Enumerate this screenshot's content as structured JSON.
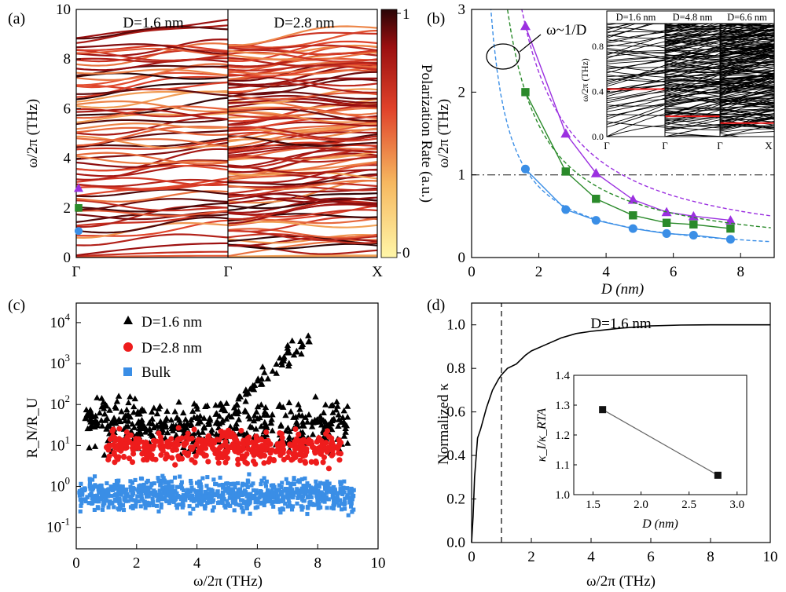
{
  "chart_data": [
    {
      "panel": "(a)",
      "type": "line",
      "ylabel": "ω/2π (THz)",
      "ylim": [
        0,
        10
      ],
      "y_ticks": [
        "0",
        "2",
        "4",
        "6",
        "8",
        "10"
      ],
      "x_ticks": [
        "Γ",
        "Γ",
        "X"
      ],
      "sub_labels": [
        "D=1.6 nm",
        "D=2.8 nm"
      ],
      "colorbar": {
        "label": "Polarization Rate (a.u.)",
        "ticks": [
          "0",
          "1"
        ],
        "range": [
          0,
          1
        ]
      },
      "markers": [
        {
          "shape": "triangle",
          "color": "#9b30e0",
          "y": 2.8
        },
        {
          "shape": "square",
          "color": "#2a8a2a",
          "y": 2.0
        },
        {
          "shape": "circle",
          "color": "#3a8ee6",
          "y": 1.07
        }
      ]
    },
    {
      "panel": "(b)",
      "type": "line",
      "xlabel": "D (nm)",
      "ylabel": "ω/2π (THz)",
      "xlim": [
        0,
        9
      ],
      "ylim": [
        0,
        3
      ],
      "x_ticks": [
        "0",
        "2",
        "4",
        "6",
        "8"
      ],
      "y_ticks": [
        "0",
        "1",
        "2",
        "3"
      ],
      "annotation": "ω~1/D",
      "reference_line_y": 1,
      "series": [
        {
          "shape": "triangle",
          "color": "#9b30e0",
          "x": [
            1.6,
            2.8,
            3.7,
            4.8,
            5.8,
            6.6,
            7.7
          ],
          "y": [
            2.8,
            1.5,
            1.02,
            0.7,
            0.55,
            0.5,
            0.45
          ]
        },
        {
          "shape": "square",
          "color": "#2a8a2a",
          "x": [
            1.6,
            2.8,
            3.7,
            4.8,
            5.8,
            6.6,
            7.7
          ],
          "y": [
            2.0,
            1.04,
            0.71,
            0.51,
            0.42,
            0.4,
            0.35
          ]
        },
        {
          "shape": "circle",
          "color": "#3a8ee6",
          "x": [
            1.6,
            2.8,
            3.7,
            4.8,
            5.8,
            6.6,
            7.7
          ],
          "y": [
            1.07,
            0.58,
            0.45,
            0.35,
            0.29,
            0.27,
            0.22
          ]
        }
      ],
      "inset": {
        "ylabel": "ω/2π (THz)",
        "ylim": [
          0,
          1
        ],
        "y_ticks": [
          "0.0",
          "0.4",
          "0.8"
        ],
        "x_ticks": [
          "Γ",
          "Γ",
          "Γ",
          "X"
        ],
        "titles": [
          "D=1.6 nm",
          "D=4.8 nm",
          "D=6.6 nm"
        ],
        "red_levels": [
          0.42,
          0.18,
          0.12
        ]
      }
    },
    {
      "panel": "(c)",
      "type": "scatter",
      "xlabel": "ω/2π (THz)",
      "ylabel": "R_N/R_U",
      "xlim": [
        0,
        10
      ],
      "y_scale": "log",
      "ylim": [
        0.03,
        30000
      ],
      "x_ticks": [
        "0",
        "2",
        "4",
        "6",
        "8",
        "10"
      ],
      "y_ticks": [
        {
          "base": "10",
          "exp": "-1"
        },
        {
          "base": "10",
          "exp": "0"
        },
        {
          "base": "10",
          "exp": "1"
        },
        {
          "base": "10",
          "exp": "2"
        },
        {
          "base": "10",
          "exp": "3"
        },
        {
          "base": "10",
          "exp": "4"
        }
      ],
      "legend": {
        "position": "top-left",
        "entries": [
          "D=1.6 nm",
          "D=2.8 nm",
          "Bulk"
        ]
      },
      "series": [
        {
          "name": "D=1.6 nm",
          "shape": "triangle",
          "color": "#000000",
          "x_range": [
            0.3,
            9.0
          ],
          "log10_center": 1.45,
          "log10_spread": 0.55
        },
        {
          "name": "D=2.8 nm",
          "shape": "circle",
          "color": "#ee1c1c",
          "x_range": [
            1.0,
            8.8
          ],
          "log10_center": 0.95,
          "log10_spread": 0.35
        },
        {
          "name": "Bulk",
          "shape": "square",
          "color": "#3a8ee6",
          "x_range": [
            0.1,
            9.2
          ],
          "log10_center": -0.2,
          "log10_spread": 0.35
        }
      ]
    },
    {
      "panel": "(d)",
      "type": "line",
      "title": "D=1.6 nm",
      "xlabel": "ω/2π (THz)",
      "ylabel": "Normalized κ",
      "xlim": [
        0,
        10
      ],
      "ylim": [
        0,
        1.1
      ],
      "x_ticks": [
        "0",
        "2",
        "4",
        "6",
        "8",
        "10"
      ],
      "y_ticks": [
        "0.0",
        "0.2",
        "0.4",
        "0.6",
        "0.8",
        "1.0"
      ],
      "vline_x": 1,
      "x": [
        0,
        0.05,
        0.1,
        0.2,
        0.3,
        0.5,
        0.7,
        0.9,
        1.0,
        1.2,
        1.5,
        1.8,
        2.0,
        2.5,
        3.0,
        3.5,
        4.0,
        5.0,
        6.0,
        7.0,
        8.0,
        9.0,
        10.0
      ],
      "y": [
        0,
        0.12,
        0.3,
        0.48,
        0.52,
        0.62,
        0.7,
        0.75,
        0.77,
        0.8,
        0.82,
        0.86,
        0.88,
        0.91,
        0.94,
        0.96,
        0.97,
        0.985,
        0.995,
        0.999,
        1.0,
        1.0,
        1.0
      ],
      "inset": {
        "xlabel": "D (nm)",
        "ylabel": "κ_I/κ_RTA",
        "xlim": [
          1.3,
          3.1
        ],
        "ylim": [
          1.0,
          1.4
        ],
        "x_ticks": [
          "1.5",
          "2.0",
          "2.5",
          "3.0"
        ],
        "y_ticks": [
          "1.0",
          "1.1",
          "1.2",
          "1.3",
          "1.4"
        ],
        "x": [
          1.6,
          2.8
        ],
        "y": [
          1.285,
          1.065
        ]
      }
    }
  ]
}
